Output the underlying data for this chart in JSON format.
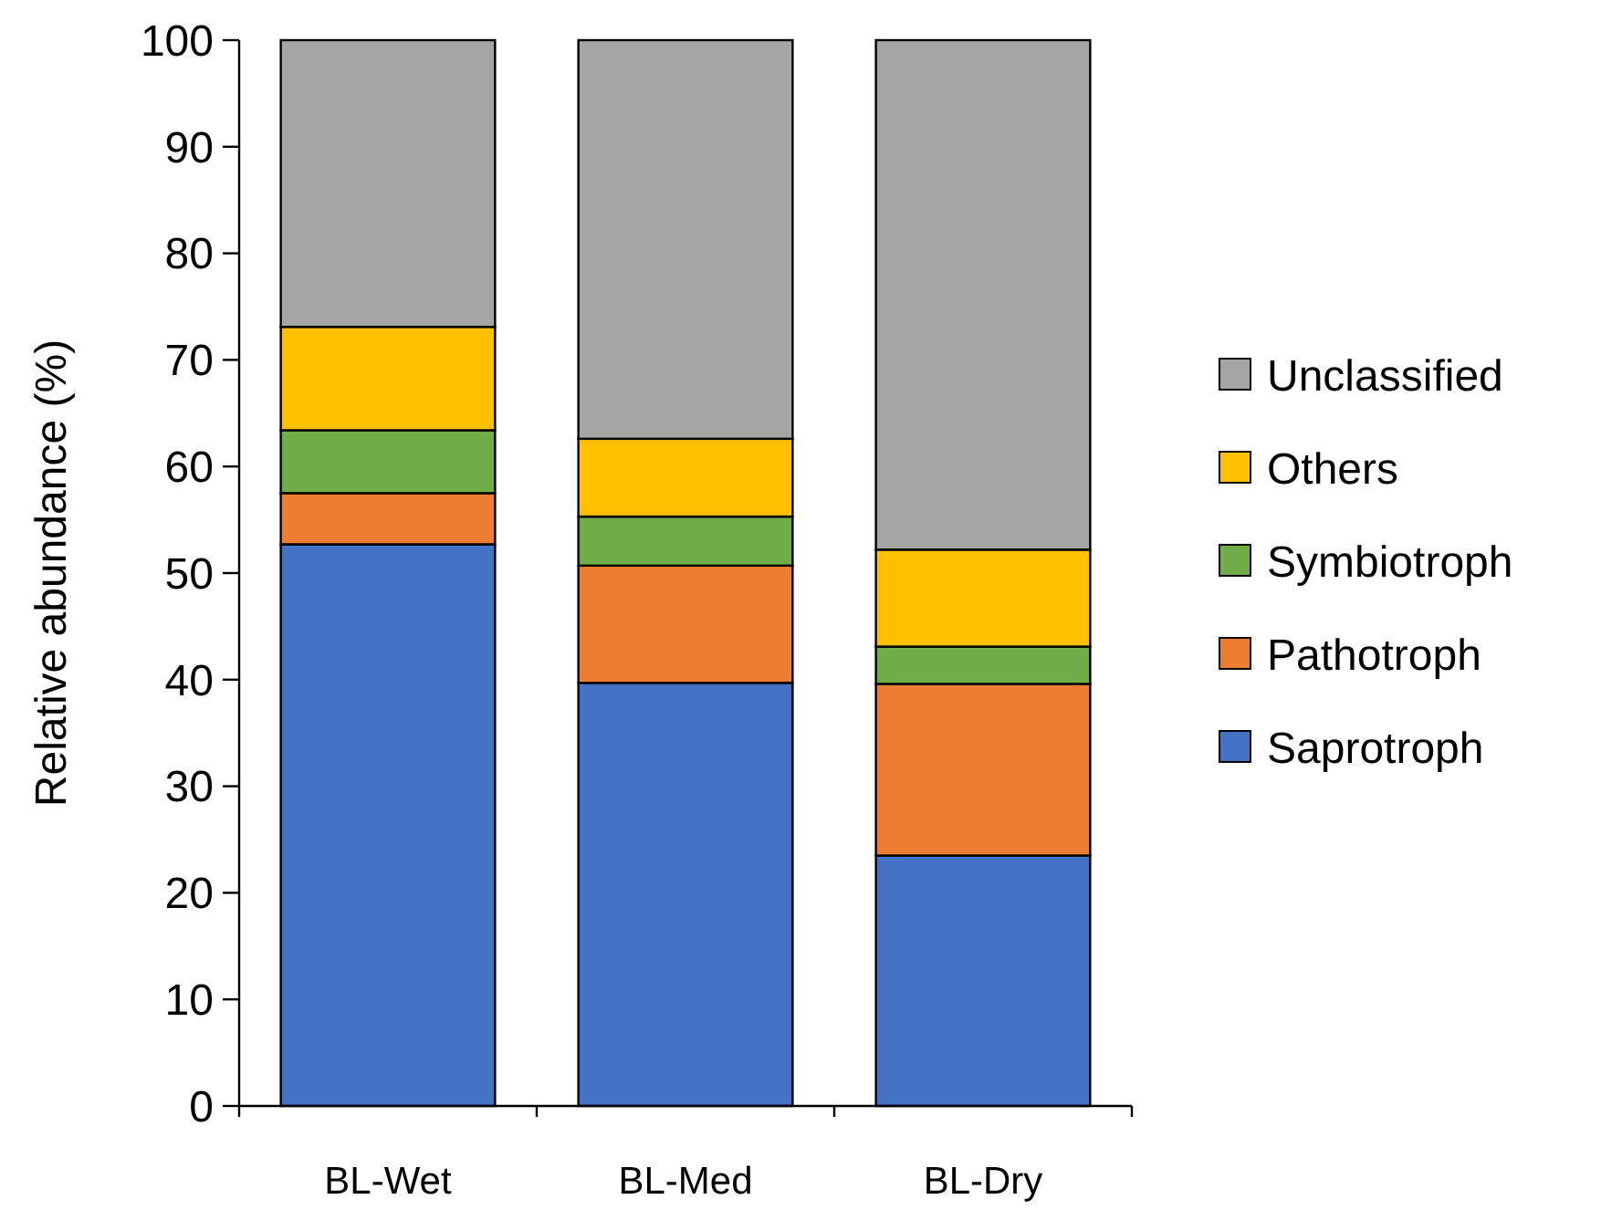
{
  "chart_data": {
    "type": "bar",
    "stacked": true,
    "ylabel": "Relative abundance (%)",
    "categories": [
      "BL-Wet",
      "BL-Med",
      "BL-Dry"
    ],
    "ylim": [
      0,
      100
    ],
    "yticks": [
      0,
      10,
      20,
      30,
      40,
      50,
      60,
      70,
      80,
      90,
      100
    ],
    "legend": "right",
    "grid": false,
    "series": [
      {
        "name": "Saprotroph",
        "color": "#4472c4",
        "values": [
          52.7,
          39.7,
          23.5
        ]
      },
      {
        "name": "Pathotroph",
        "color": "#ed7d31",
        "values": [
          4.8,
          11.0,
          16.1
        ]
      },
      {
        "name": "Symbiotroph",
        "color": "#70ad47",
        "values": [
          5.9,
          4.6,
          3.5
        ]
      },
      {
        "name": "Others",
        "color": "#ffc000",
        "values": [
          9.7,
          7.3,
          9.1
        ]
      },
      {
        "name": "Unclassified",
        "color": "#a5a5a5",
        "values": [
          26.9,
          37.4,
          47.8
        ]
      }
    ]
  }
}
